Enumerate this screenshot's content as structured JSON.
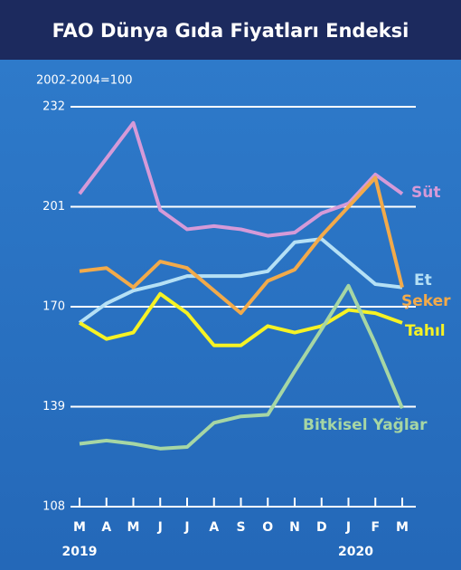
{
  "chart_data": {
    "type": "line",
    "title": "FAO Dünya Gıda Fiyatları Endeksi",
    "subtitle": "2002-2004=100",
    "categories": [
      "M",
      "A",
      "M",
      "J",
      "J",
      "A",
      "S",
      "O",
      "N",
      "D",
      "J",
      "F",
      "M"
    ],
    "year_labels": [
      "2019",
      "2020"
    ],
    "ylim": [
      108,
      232
    ],
    "yticks": [
      108,
      139,
      170,
      201,
      232
    ],
    "grid": true,
    "series": [
      {
        "name": "Süt",
        "color": "#d59ad8",
        "values": [
          205,
          216,
          227,
          200,
          194,
          195,
          194,
          192,
          193,
          199,
          202,
          211,
          205
        ]
      },
      {
        "name": "Et",
        "color": "#b5e0f5",
        "values": [
          165,
          171,
          175,
          177,
          179.5,
          179.5,
          179.5,
          181,
          190,
          191,
          184,
          177,
          176
        ]
      },
      {
        "name": "Şeker",
        "color": "#f2aa4a",
        "values": [
          181,
          182,
          176,
          184,
          182,
          175,
          168,
          178,
          181.5,
          192,
          201,
          210,
          176
        ]
      },
      {
        "name": "Tahıl",
        "color": "#f6f224",
        "values": [
          165,
          160,
          162,
          174,
          168,
          158,
          158,
          164,
          162,
          164,
          169,
          168,
          165
        ]
      },
      {
        "name": "Bitkisel Yağlar",
        "color": "#a6d6a4",
        "values": [
          127.5,
          128.5,
          127.5,
          126,
          126.5,
          134,
          136,
          136.5,
          150,
          163,
          176.5,
          158.5,
          138.5
        ]
      }
    ]
  }
}
